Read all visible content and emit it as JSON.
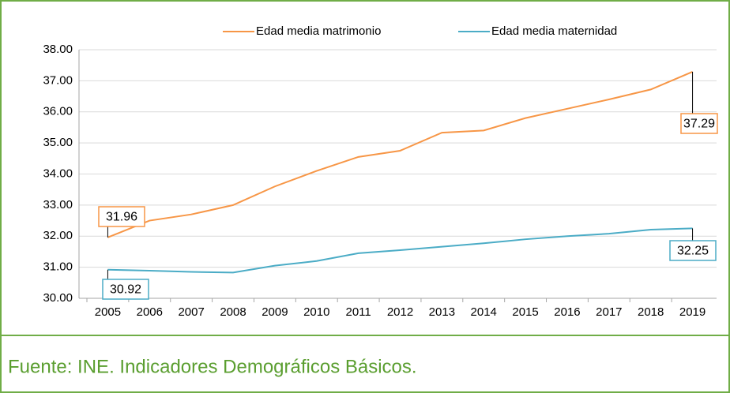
{
  "chart_data": {
    "type": "line",
    "categories": [
      "2005",
      "2006",
      "2007",
      "2008",
      "2009",
      "2010",
      "2011",
      "2012",
      "2013",
      "2014",
      "2015",
      "2016",
      "2017",
      "2018",
      "2019"
    ],
    "series": [
      {
        "name": "Edad media matrimonio",
        "color": "#f79646",
        "values": [
          31.96,
          32.5,
          32.7,
          33.0,
          33.6,
          34.1,
          34.55,
          34.75,
          35.33,
          35.4,
          35.8,
          36.1,
          36.4,
          36.72,
          37.29
        ]
      },
      {
        "name": "Edad media maternidad",
        "color": "#4bacc6",
        "values": [
          30.92,
          30.89,
          30.85,
          30.83,
          31.05,
          31.2,
          31.45,
          31.55,
          31.66,
          31.77,
          31.9,
          32.0,
          32.08,
          32.21,
          32.25
        ]
      }
    ],
    "ylim": [
      30,
      38
    ],
    "yticks": [
      {
        "value": 30,
        "label": "30.00"
      },
      {
        "value": 31,
        "label": "31.00"
      },
      {
        "value": 32,
        "label": "32.00"
      },
      {
        "value": 33,
        "label": "33.00"
      },
      {
        "value": 34,
        "label": "34.00"
      },
      {
        "value": 35,
        "label": "35.00"
      },
      {
        "value": 36,
        "label": "36.00"
      },
      {
        "value": 37,
        "label": "37.00"
      },
      {
        "value": 38,
        "label": "38.00"
      }
    ],
    "grid": true,
    "legend": "top",
    "source": "Fuente: INE. Indicadores Demográficos Básicos."
  }
}
